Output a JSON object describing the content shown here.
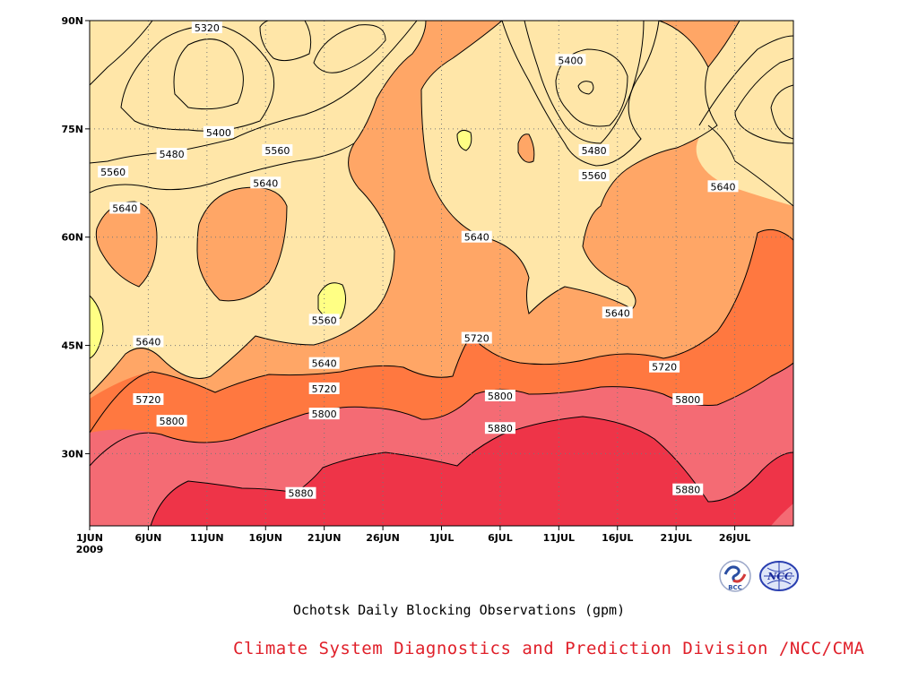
{
  "chart_data": {
    "type": "heatmap",
    "plot_kind": "filled contour (time-latitude Hovmoller)",
    "title": "Ochotsk Daily Blocking Observations (gpm)",
    "x_axis": {
      "type": "date",
      "range": [
        "2009-06-01",
        "2009-07-31"
      ],
      "tick_labels": [
        "1JUN",
        "6JUN",
        "11JUN",
        "16JUN",
        "21JUN",
        "26JUN",
        "1JUL",
        "6JUL",
        "11JUL",
        "16JUL",
        "21JUL",
        "26JUL"
      ],
      "year_label": "2009"
    },
    "y_axis": {
      "range": [
        20,
        90
      ],
      "tick_labels": [
        "30N",
        "45N",
        "60N",
        "75N",
        "90N"
      ]
    },
    "grid": true,
    "contour_interval": 80,
    "contour_levels": [
      5320,
      5400,
      5480,
      5560,
      5640,
      5720,
      5800,
      5880
    ],
    "colors": {
      "lt5320": "#4a4cee",
      "5320_5400": "#5a8fe6",
      "5400_5480": "#6bc6ff",
      "5480_5560": "#ffff84",
      "5560_5640": "#ffe6a8",
      "5640_5720": "#ffa666",
      "5720_5800": "#ff7840",
      "5800_5880": "#f46b74",
      "gt5880": "#ee3448"
    },
    "contour_labels": [
      {
        "text": "5320",
        "date": "2009-06-11",
        "lat": 89
      },
      {
        "text": "5400",
        "date": "2009-06-12",
        "lat": 74.5
      },
      {
        "text": "5480",
        "date": "2009-06-08",
        "lat": 71.5
      },
      {
        "text": "5560",
        "date": "2009-06-03",
        "lat": 69
      },
      {
        "text": "5560",
        "date": "2009-06-17",
        "lat": 72
      },
      {
        "text": "5640",
        "date": "2009-06-04",
        "lat": 64
      },
      {
        "text": "5640",
        "date": "2009-06-16",
        "lat": 67.5
      },
      {
        "text": "5400",
        "date": "2009-07-12",
        "lat": 84.5
      },
      {
        "text": "5480",
        "date": "2009-07-14",
        "lat": 72
      },
      {
        "text": "5560",
        "date": "2009-07-14",
        "lat": 68.5
      },
      {
        "text": "5640",
        "date": "2009-07-04",
        "lat": 60
      },
      {
        "text": "5640",
        "date": "2009-07-25",
        "lat": 67
      },
      {
        "text": "5560",
        "date": "2009-06-21",
        "lat": 48.5
      },
      {
        "text": "5640",
        "date": "2009-06-06",
        "lat": 45.5
      },
      {
        "text": "5640",
        "date": "2009-06-21",
        "lat": 42.5
      },
      {
        "text": "5640",
        "date": "2009-07-16",
        "lat": 49.5
      },
      {
        "text": "5720",
        "date": "2009-07-04",
        "lat": 46
      },
      {
        "text": "5720",
        "date": "2009-06-06",
        "lat": 37.5
      },
      {
        "text": "5720",
        "date": "2009-06-21",
        "lat": 39
      },
      {
        "text": "5720",
        "date": "2009-07-20",
        "lat": 42
      },
      {
        "text": "5800",
        "date": "2009-06-08",
        "lat": 34.5
      },
      {
        "text": "5800",
        "date": "2009-06-21",
        "lat": 35.5
      },
      {
        "text": "5800",
        "date": "2009-07-06",
        "lat": 38
      },
      {
        "text": "5800",
        "date": "2009-07-22",
        "lat": 37.5
      },
      {
        "text": "5880",
        "date": "2009-07-06",
        "lat": 33.5
      },
      {
        "text": "5880",
        "date": "2009-06-19",
        "lat": 24.5
      },
      {
        "text": "5880",
        "date": "2009-07-22",
        "lat": 25
      }
    ],
    "logos": [
      {
        "name": "bcc-logo",
        "text": "BCC"
      },
      {
        "name": "ncc-logo",
        "text": "NCC"
      }
    ],
    "credit": "Climate System Diagnostics and Prediction Division /NCC/CMA"
  }
}
